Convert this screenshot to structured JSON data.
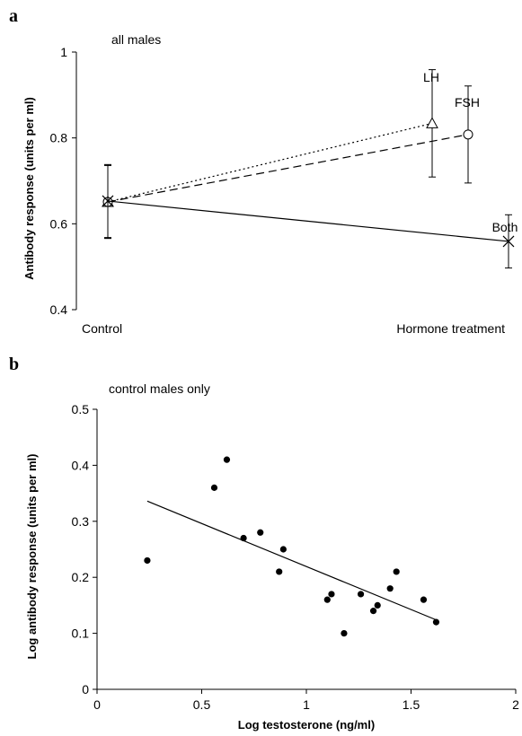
{
  "chart_data": [
    {
      "panel": "a",
      "type": "line",
      "annotation": "all males",
      "categories": [
        "Control",
        "Hormone treatment"
      ],
      "xlabel": "",
      "ylabel": "Antibody response (units per ml)",
      "ylim": [
        0.4,
        1.0
      ],
      "yticks": [
        "0.4",
        "0.6",
        "0.8",
        "1"
      ],
      "grid": false,
      "legend": "none",
      "series": [
        {
          "name": "LH",
          "marker": "triangle",
          "line_style": "dotted",
          "values": [
            0.651,
            0.834
          ],
          "error": [
            0.085,
            0.125
          ]
        },
        {
          "name": "FSH",
          "marker": "circle",
          "line_style": "dashed",
          "values": [
            0.651,
            0.808
          ],
          "error": [
            0.085,
            0.113
          ]
        },
        {
          "name": "Both",
          "marker": "x",
          "line_style": "solid",
          "values": [
            0.653,
            0.559
          ],
          "error": [
            0.085,
            0.062
          ]
        }
      ]
    },
    {
      "panel": "b",
      "type": "scatter",
      "annotation": "control males only",
      "xlabel": "Log testosterone (ng/ml)",
      "ylabel": "Log antibody response (units per ml)",
      "xlim": [
        0,
        2
      ],
      "ylim": [
        0,
        0.5
      ],
      "xticks": [
        "0",
        "0.5",
        "1",
        "1.5",
        "2"
      ],
      "yticks": [
        "0",
        "0.1",
        "0.2",
        "0.3",
        "0.4",
        "0.5"
      ],
      "grid": false,
      "legend": "none",
      "points": [
        {
          "x": 0.24,
          "y": 0.23
        },
        {
          "x": 0.56,
          "y": 0.36
        },
        {
          "x": 0.62,
          "y": 0.41
        },
        {
          "x": 0.7,
          "y": 0.27
        },
        {
          "x": 0.78,
          "y": 0.28
        },
        {
          "x": 0.87,
          "y": 0.21
        },
        {
          "x": 0.89,
          "y": 0.25
        },
        {
          "x": 1.1,
          "y": 0.16
        },
        {
          "x": 1.12,
          "y": 0.17
        },
        {
          "x": 1.18,
          "y": 0.1
        },
        {
          "x": 1.26,
          "y": 0.17
        },
        {
          "x": 1.32,
          "y": 0.14
        },
        {
          "x": 1.34,
          "y": 0.15
        },
        {
          "x": 1.4,
          "y": 0.18
        },
        {
          "x": 1.43,
          "y": 0.21
        },
        {
          "x": 1.56,
          "y": 0.16
        },
        {
          "x": 1.62,
          "y": 0.12
        }
      ],
      "trendline": {
        "x": [
          0.24,
          1.62
        ],
        "y": [
          0.336,
          0.124
        ]
      }
    }
  ]
}
